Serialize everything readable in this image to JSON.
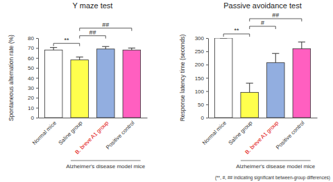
{
  "chart_data": [
    {
      "type": "bar",
      "title": "Y maze test",
      "y_label": "Spontaneous alternation rate (%)",
      "categories": [
        "Normal mice",
        "Saline group",
        "B. breve A1 group",
        "Positive control"
      ],
      "values": [
        68,
        58,
        69,
        68
      ],
      "errors": [
        2.5,
        3,
        2.5,
        2
      ],
      "colors": [
        "#ffffff",
        "#ffff4d",
        "#92aee0",
        "#ff5fc0"
      ],
      "ylim": [
        0,
        80
      ],
      "yticks": [
        0,
        10,
        20,
        30,
        40,
        50,
        60,
        70,
        80
      ],
      "annotations": [
        {
          "text": "**",
          "between": [
            "Normal mice",
            "Saline group"
          ]
        },
        {
          "text": "##",
          "between": [
            "Saline group",
            "B. breve A1 group"
          ]
        },
        {
          "text": "##",
          "between": [
            "Saline group",
            "Positive control"
          ]
        }
      ],
      "group_label": {
        "text": "Alzheimer's disease model mice",
        "categories": [
          "Saline group",
          "B. breve A1 group",
          "Positive control"
        ]
      }
    },
    {
      "type": "bar",
      "title": "Passive avoidance test",
      "y_label": "Response latency time (seconds)",
      "categories": [
        "Normal mice",
        "Saline group",
        "B. breve A1 group",
        "Positive control"
      ],
      "values": [
        300,
        95,
        207,
        260
      ],
      "errors": [
        0,
        35,
        35,
        25
      ],
      "colors": [
        "#ffffff",
        "#ffff4d",
        "#92aee0",
        "#ff5fc0"
      ],
      "ylim": [
        0,
        300
      ],
      "yticks": [
        0,
        50,
        100,
        150,
        200,
        250,
        300
      ],
      "annotations": [
        {
          "text": "**",
          "between": [
            "Normal mice",
            "Saline group"
          ]
        },
        {
          "text": "#",
          "between": [
            "Saline group",
            "B. breve A1 group"
          ]
        },
        {
          "text": "##",
          "between": [
            "Saline group",
            "Positive control"
          ]
        }
      ],
      "group_label": {
        "text": "Alzheimer's disease model mice",
        "categories": [
          "Saline group",
          "B. breve A1 group",
          "Positive control"
        ]
      }
    }
  ],
  "footnote": "(**, #, ## indicating significant between-group differences)"
}
